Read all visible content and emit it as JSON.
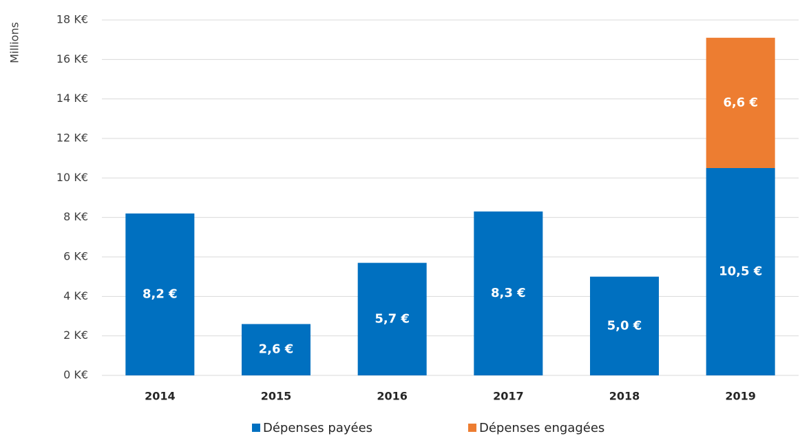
{
  "chart_data": {
    "type": "stacked_bar",
    "y_label": "Millions",
    "categories": [
      "2014",
      "2015",
      "2016",
      "2017",
      "2018",
      "2019"
    ],
    "series": [
      {
        "name": "Dépenses payées",
        "color": "#0070c0",
        "values": [
          8.2,
          2.6,
          5.7,
          8.3,
          5.0,
          10.5
        ],
        "value_labels": [
          "8,2 €",
          "2,6 €",
          "5,7 €",
          "8,3 €",
          "5,0 €",
          "10,5 €"
        ]
      },
      {
        "name": "Dépenses engagées",
        "color": "#ed7d31",
        "values": [
          null,
          null,
          null,
          null,
          null,
          6.6
        ],
        "value_labels": [
          null,
          null,
          null,
          null,
          null,
          "6,6 €"
        ]
      }
    ],
    "ylim": [
      0,
      18
    ],
    "yticks": [
      {
        "value": 0,
        "label": "0 K€"
      },
      {
        "value": 2,
        "label": "2 K€"
      },
      {
        "value": 4,
        "label": "4 K€"
      },
      {
        "value": 6,
        "label": "6 K€"
      },
      {
        "value": 8,
        "label": "8 K€"
      },
      {
        "value": 10,
        "label": "10 K€"
      },
      {
        "value": 12,
        "label": "12 K€"
      },
      {
        "value": 14,
        "label": "14 K€"
      },
      {
        "value": 16,
        "label": "16 K€"
      },
      {
        "value": 18,
        "label": "18 K€"
      }
    ],
    "grid": true,
    "legend": "bottom"
  }
}
